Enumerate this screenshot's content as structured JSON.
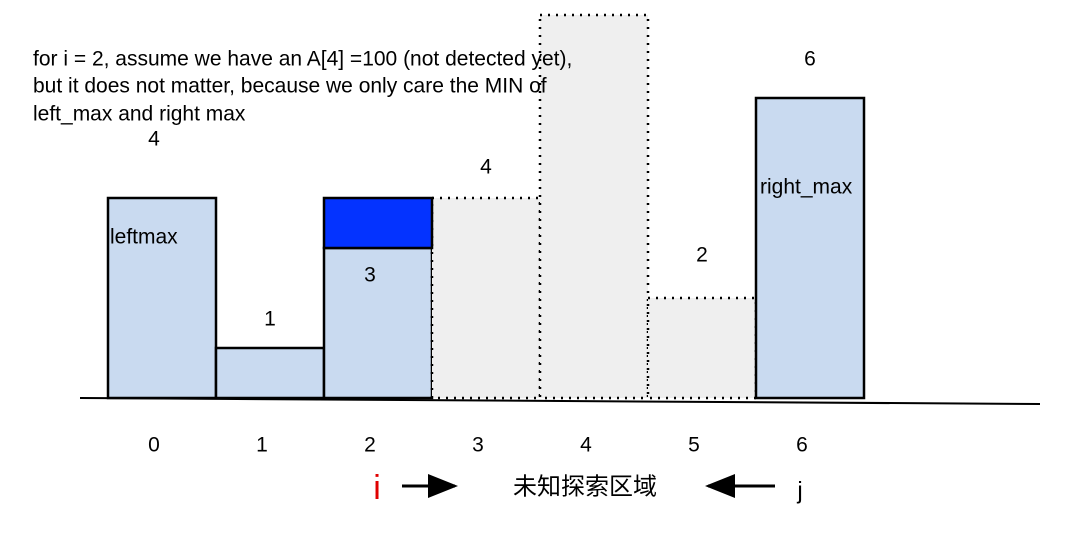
{
  "note": [
    "for i = 2,  assume we have an A[4] =100 (not detected yet),",
    "but it does not matter, because we only care the MIN of",
    "left_max and right max"
  ],
  "bars": [
    {
      "value": 4,
      "label": "leftmax",
      "known": true
    },
    {
      "value": 1,
      "known": true
    },
    {
      "value": 3,
      "known": true
    },
    {
      "value": 4,
      "known": false
    },
    {
      "value": null,
      "known": false
    },
    {
      "value": 2,
      "known": false
    },
    {
      "value": 6,
      "label": "right_max",
      "known": true
    }
  ],
  "indices": [
    0,
    1,
    2,
    3,
    4,
    5,
    6
  ],
  "pointer_i": "i",
  "region": "未知探索区域",
  "pointer_j": "j"
}
